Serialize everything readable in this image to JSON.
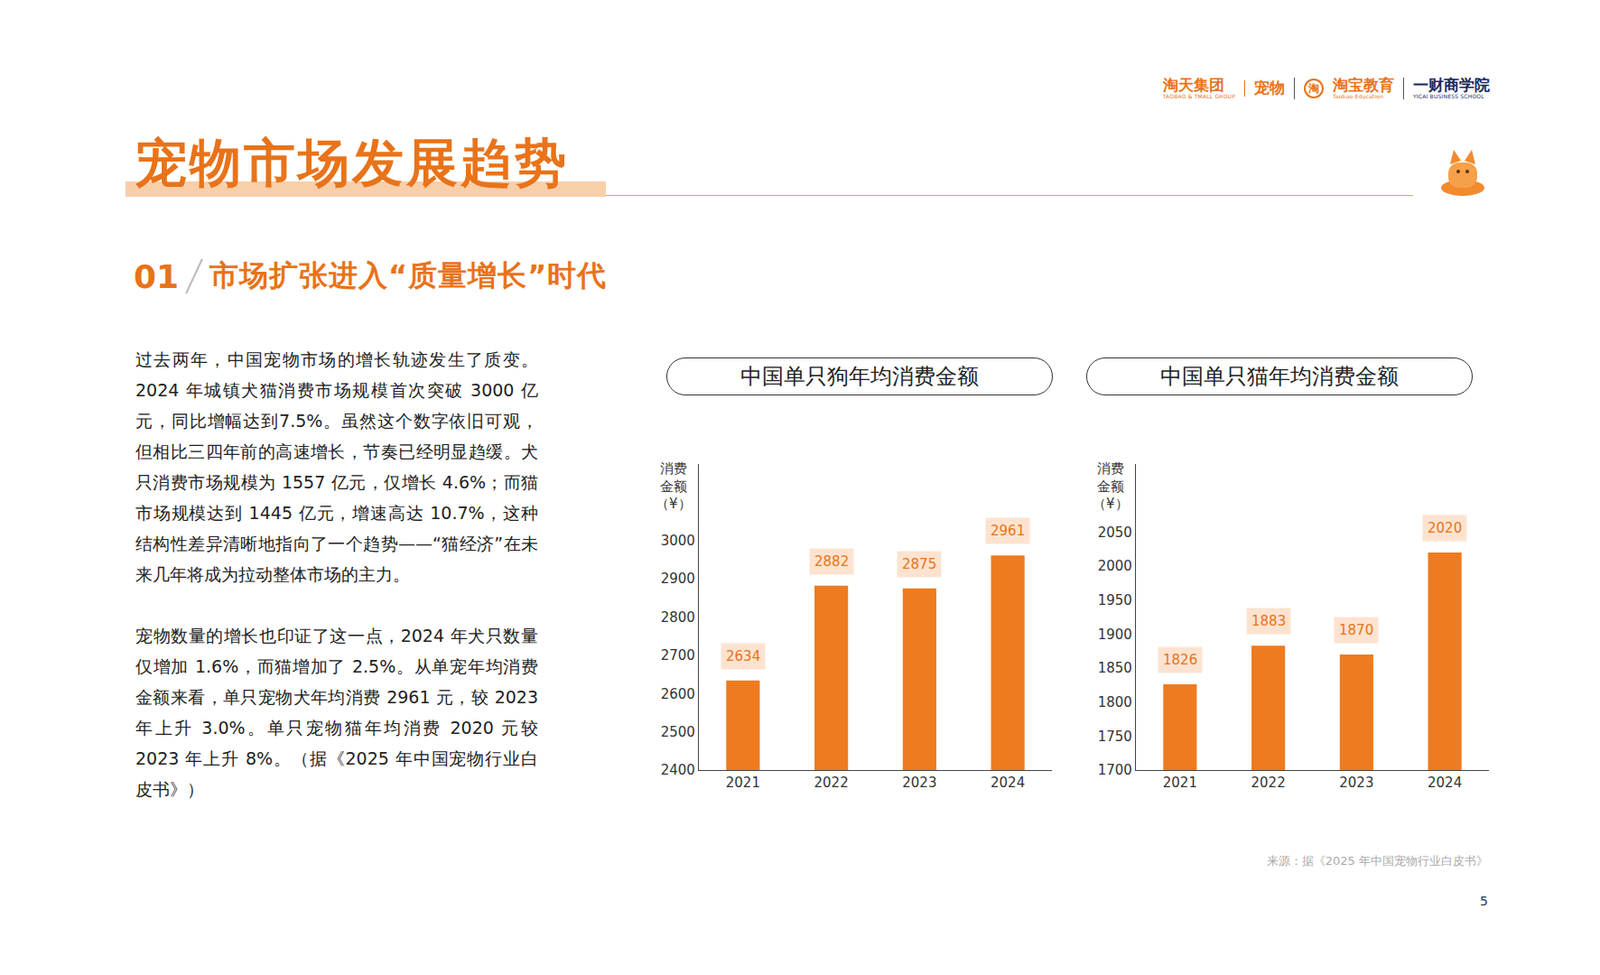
{
  "header": {
    "logos": [
      {
        "name": "淘天集团",
        "sub": "TAOBAO & TMALL GROUP"
      },
      {
        "name": "宠物"
      },
      {
        "icon": "淘",
        "name": "淘宝教育",
        "sub": "Taobao Education"
      },
      {
        "name": "一财商学院",
        "sub": "YICAI BUSINESS SCHOOL"
      }
    ]
  },
  "title": "宠物市场发展趋势",
  "section": {
    "number": "01",
    "text": "市场扩张进入“质量增长”时代"
  },
  "paragraphs": [
    "过去两年，中国宠物市场的增长轨迹发生了质变。2024 年城镇犬猫消费市场规模首次突破 3000 亿元，同比增幅达到7.5%。虽然这个数字依旧可观，但相比三四年前的高速增长，节奏已经明显趋缓。犬只消费市场规模为 1557 亿元，仅增长 4.6%；而猫市场规模达到 1445 亿元，增速高达 10.7%，这种结构性差异清晰地指向了一个趋势——“猫经济”在未来几年将成为拉动整体市场的主力。",
    "宠物数量的增长也印证了这一点，2024 年犬只数量仅增加 1.6%，而猫增加了 2.5%。从单宠年均消费金额来看，单只宠物犬年均消费 2961 元，较 2023 年上升 3.0%。单只宠物猫年均消费 2020 元较 2023 年上升 8%。（据《2025 年中国宠物行业白皮书》）"
  ],
  "source": "来源：据《2025 年中国宠物行业白皮书》",
  "page_number": "5",
  "chart_data": [
    {
      "type": "bar",
      "title": "中国单只狗年均消费金额",
      "y_label": "消费金额（¥）",
      "categories": [
        "2021",
        "2022",
        "2023",
        "2024"
      ],
      "values": [
        2634,
        2882,
        2875,
        2961
      ],
      "color": "#EE7B1F",
      "ylim": [
        2400,
        3200
      ],
      "yticks": [
        2400,
        2500,
        2600,
        2700,
        2800,
        2900,
        3000
      ],
      "grid": false,
      "data_labels": true
    },
    {
      "type": "bar",
      "title": "中国单只猫年均消费金额",
      "y_label": "消费金额（¥）",
      "categories": [
        "2021",
        "2022",
        "2023",
        "2024"
      ],
      "values": [
        1826,
        1883,
        1870,
        2020
      ],
      "color": "#EE7B1F",
      "ylim": [
        1700,
        2150
      ],
      "yticks": [
        1700,
        1750,
        1800,
        1850,
        1900,
        1950,
        2000,
        2050
      ],
      "grid": false,
      "data_labels": true
    }
  ]
}
